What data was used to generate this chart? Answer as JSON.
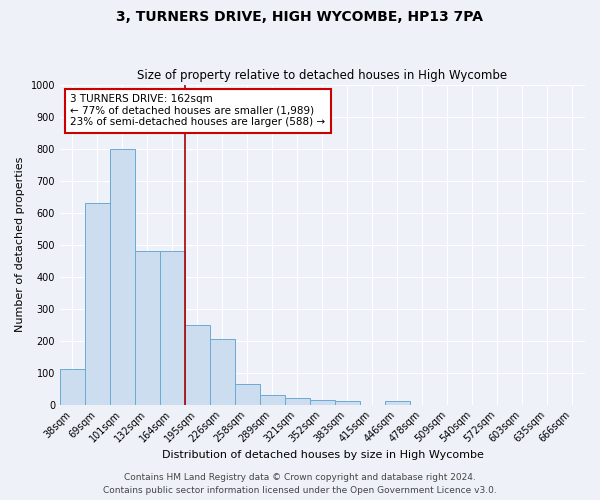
{
  "title": "3, TURNERS DRIVE, HIGH WYCOMBE, HP13 7PA",
  "subtitle": "Size of property relative to detached houses in High Wycombe",
  "xlabel": "Distribution of detached houses by size in High Wycombe",
  "ylabel": "Number of detached properties",
  "categories": [
    "38sqm",
    "69sqm",
    "101sqm",
    "132sqm",
    "164sqm",
    "195sqm",
    "226sqm",
    "258sqm",
    "289sqm",
    "321sqm",
    "352sqm",
    "383sqm",
    "415sqm",
    "446sqm",
    "478sqm",
    "509sqm",
    "540sqm",
    "572sqm",
    "603sqm",
    "635sqm",
    "666sqm"
  ],
  "values": [
    110,
    630,
    800,
    480,
    480,
    250,
    205,
    63,
    30,
    22,
    15,
    10,
    0,
    12,
    0,
    0,
    0,
    0,
    0,
    0,
    0
  ],
  "bar_color": "#ccddf0",
  "bar_edge_color": "#6aaad4",
  "vline_x_index": 5,
  "vline_color": "#aa0000",
  "annotation_text": "3 TURNERS DRIVE: 162sqm\n← 77% of detached houses are smaller (1,989)\n23% of semi-detached houses are larger (588) →",
  "annotation_box_color": "#ffffff",
  "annotation_box_edge_color": "#cc0000",
  "ylim": [
    0,
    1000
  ],
  "yticks": [
    0,
    100,
    200,
    300,
    400,
    500,
    600,
    700,
    800,
    900,
    1000
  ],
  "footer_line1": "Contains HM Land Registry data © Crown copyright and database right 2024.",
  "footer_line2": "Contains public sector information licensed under the Open Government Licence v3.0.",
  "bg_color": "#eef2f8",
  "plot_bg_color": "#eef2f8",
  "grid_color": "#ffffff",
  "title_fontsize": 10,
  "subtitle_fontsize": 8.5,
  "axis_label_fontsize": 8,
  "tick_fontsize": 7,
  "footer_fontsize": 6.5,
  "annotation_fontsize": 7.5
}
